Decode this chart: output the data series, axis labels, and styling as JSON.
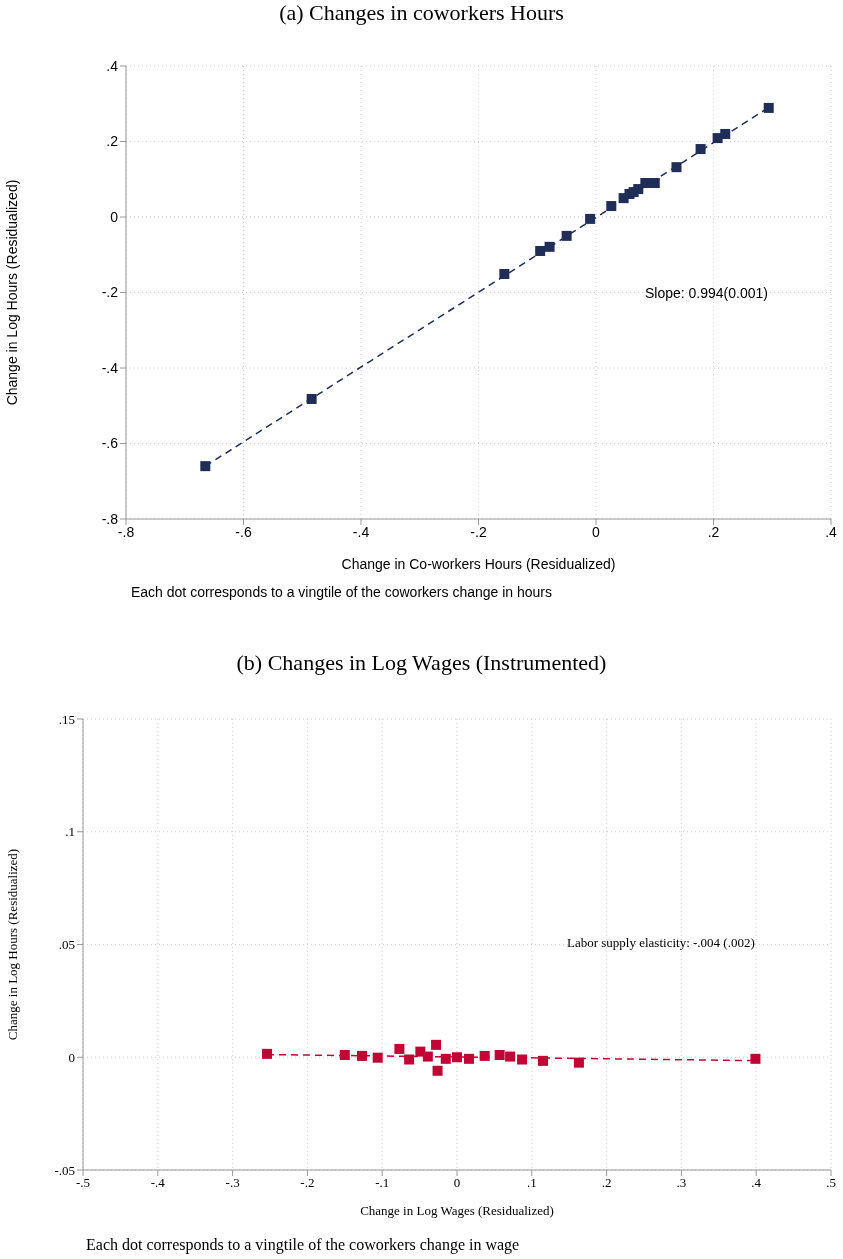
{
  "chart_data": [
    {
      "type": "scatter",
      "title": "(a) Changes in coworkers Hours",
      "xlabel": "Change in Co-workers Hours (Residualized)",
      "ylabel": "Change in Log Hours (Residualized)",
      "annotations": [
        "Slope: 0.994(0.001)",
        "Each dot corresponds to a vingtile of the coworkers change in hours"
      ],
      "series": [
        {
          "color": "#1f2d57",
          "marker": "square",
          "x": [
            -0.665,
            -0.484,
            -0.156,
            -0.095,
            -0.079,
            -0.05,
            -0.01,
            0.026,
            0.047,
            0.057,
            0.064,
            0.072,
            0.084,
            0.1,
            0.137,
            0.178,
            0.207,
            0.22,
            0.294
          ],
          "values": [
            -0.66,
            -0.482,
            -0.151,
            -0.09,
            -0.079,
            -0.05,
            -0.005,
            0.029,
            0.05,
            0.061,
            0.066,
            0.074,
            0.09,
            0.09,
            0.132,
            0.18,
            0.209,
            0.22,
            0.289
          ]
        },
        {
          "type": "line",
          "color": "#1f2d57",
          "line_style": "dashed",
          "marker": "none",
          "x": [
            -0.665,
            0.294
          ],
          "values": [
            -0.66,
            0.29
          ]
        }
      ],
      "xlim": [
        -0.8,
        0.4
      ],
      "xticks": [
        {
          "value": -0.8,
          "label": "-.8"
        },
        {
          "value": -0.6,
          "label": "-.6"
        },
        {
          "value": -0.4,
          "label": "-.4"
        },
        {
          "value": -0.2,
          "label": "-.2"
        },
        0,
        {
          "value": 0.2,
          "label": ".2"
        },
        {
          "value": 0.4,
          "label": ".4"
        }
      ],
      "ylim": [
        -0.8,
        0.4
      ],
      "yticks": [
        {
          "value": -0.8,
          "label": "-.8"
        },
        {
          "value": -0.6,
          "label": "-.6"
        },
        {
          "value": -0.4,
          "label": "-.4"
        },
        {
          "value": -0.2,
          "label": "-.2"
        },
        0,
        {
          "value": 0.2,
          "label": ".2"
        },
        {
          "value": 0.4,
          "label": ".4"
        }
      ],
      "grid": true
    },
    {
      "type": "scatter",
      "title": "(b) Changes in Log Wages (Instrumented)",
      "xlabel": "Change in Log Wages (Residualized)",
      "ylabel": "Change in Log Hours (Residualized)",
      "annotations": [
        "Labor supply elasticity: -.004 (.002)",
        "Each dot corresponds to a vingtile of the coworkers change in wage"
      ],
      "series": [
        {
          "color": "#c10534",
          "marker": "square",
          "x": [
            -0.254,
            -0.15,
            -0.127,
            -0.106,
            -0.077,
            -0.064,
            -0.049,
            -0.039,
            -0.028,
            -0.026,
            -0.015,
            0,
            0.016,
            0.037,
            0.057,
            0.071,
            0.087,
            0.115,
            0.163,
            0.399
          ],
          "values": [
            0.0015,
            0.001,
            0.0006,
            -0.0002,
            0.0037,
            -0.001,
            0.0025,
            0.0003,
            0.0055,
            -0.006,
            -0.0007,
            0,
            -0.0007,
            0.0006,
            0.001,
            0.0003,
            -0.001,
            -0.0016,
            -0.0024,
            -0.0007
          ]
        },
        {
          "type": "line",
          "color": "#c10534",
          "line_style": "dashed",
          "marker": "none",
          "x": [
            -0.254,
            0.399
          ],
          "values": [
            0.0012,
            -0.0015
          ]
        }
      ],
      "xlim": [
        -0.5,
        0.5
      ],
      "xticks": [
        {
          "value": -0.5,
          "label": "-.5"
        },
        {
          "value": -0.4,
          "label": "-.4"
        },
        {
          "value": -0.3,
          "label": "-.3"
        },
        {
          "value": -0.2,
          "label": "-.2"
        },
        {
          "value": -0.1,
          "label": "-.1"
        },
        0,
        {
          "value": 0.1,
          "label": ".1"
        },
        {
          "value": 0.2,
          "label": ".2"
        },
        {
          "value": 0.3,
          "label": ".3"
        },
        {
          "value": 0.4,
          "label": ".4"
        },
        {
          "value": 0.5,
          "label": ".5"
        }
      ],
      "ylim": [
        -0.05,
        0.15
      ],
      "yticks": [
        {
          "value": -0.05,
          "label": "-.05"
        },
        0,
        {
          "value": 0.05,
          "label": ".05"
        },
        {
          "value": 0.1,
          "label": ".1"
        },
        {
          "value": 0.15,
          "label": ".15"
        }
      ],
      "grid": true
    }
  ]
}
